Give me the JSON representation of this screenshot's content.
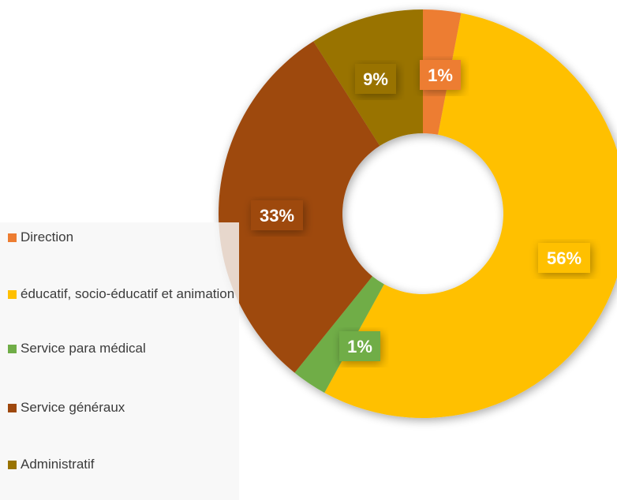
{
  "chart_data": {
    "type": "pie",
    "donut": true,
    "categories": [
      "Direction",
      "éducatif, socio-éducatif et animation",
      "Service para médical",
      "Service généraux",
      "Administratif"
    ],
    "values": [
      1,
      56,
      1,
      33,
      9
    ],
    "data_labels": [
      "1%",
      "56%",
      "1%",
      "33%",
      "9%"
    ],
    "colors": [
      "#ED7D31",
      "#FFC000",
      "#70AD47",
      "#9E480E",
      "#997300"
    ],
    "legend_position": "left",
    "title": ""
  },
  "legend": {
    "items": [
      {
        "label": "Direction",
        "color": "#ED7D31"
      },
      {
        "label": "éducatif, socio-éducatif et animation",
        "color": "#FFC000"
      },
      {
        "label": "Service para médical",
        "color": "#70AD47"
      },
      {
        "label": "Service généraux",
        "color": "#9E480E"
      },
      {
        "label": "Administratif",
        "color": "#997300"
      }
    ]
  }
}
